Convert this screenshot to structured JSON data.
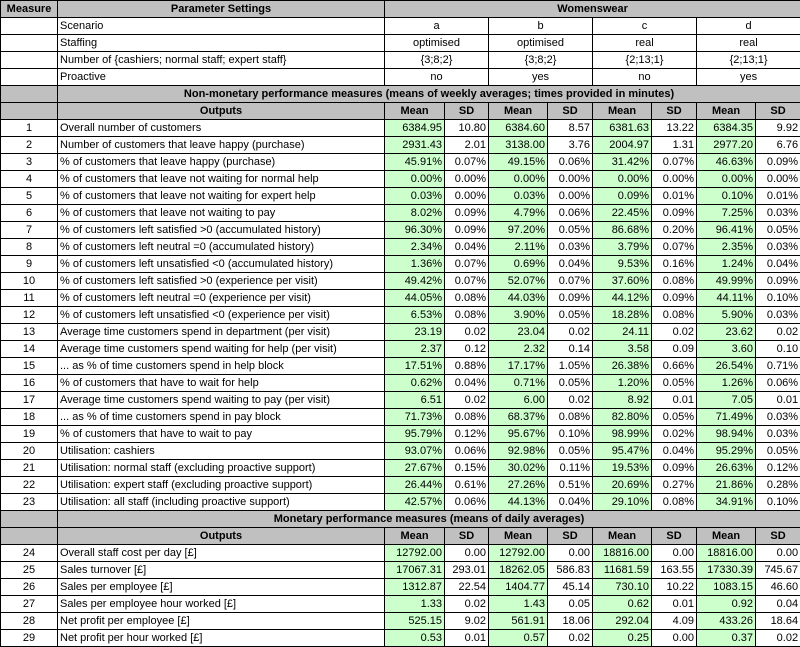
{
  "header": {
    "measure_label": "Measure",
    "params_label": "Parameter Settings",
    "dept_label": "Womenswear"
  },
  "params": [
    {
      "label": "Scenario",
      "values": [
        "a",
        "b",
        "c",
        "d"
      ]
    },
    {
      "label": "Staffing",
      "values": [
        "optimised",
        "optimised",
        "real",
        "real"
      ]
    },
    {
      "label": "Number of {cashiers; normal staff; expert staff}",
      "values": [
        "{3;8;2}",
        "{3;8;2}",
        "{2;13;1}",
        "{2;13;1}"
      ]
    },
    {
      "label": "Proactive",
      "values": [
        "no",
        "yes",
        "no",
        "yes"
      ]
    }
  ],
  "sections": [
    {
      "title": "Non-monetary performance measures (means of weekly averages; times provided in minutes)",
      "outputs_label": "Outputs",
      "col_labels": [
        "Mean",
        "SD",
        "Mean",
        "SD",
        "Mean",
        "SD",
        "Mean",
        "SD"
      ],
      "rows": [
        {
          "id": "1",
          "label": "Overall number of customers",
          "values": [
            "6384.95",
            "10.80",
            "6384.60",
            "8.57",
            "6381.63",
            "13.22",
            "6384.35",
            "9.92"
          ]
        },
        {
          "id": "2",
          "label": "Number of customers that leave happy (purchase)",
          "values": [
            "2931.43",
            "2.01",
            "3138.00",
            "3.76",
            "2004.97",
            "1.31",
            "2977.20",
            "6.76"
          ]
        },
        {
          "id": "3",
          "label": "% of customers that leave happy (purchase)",
          "values": [
            "45.91%",
            "0.07%",
            "49.15%",
            "0.06%",
            "31.42%",
            "0.07%",
            "46.63%",
            "0.09%"
          ]
        },
        {
          "id": "4",
          "label": "% of customers that leave not waiting for normal help",
          "values": [
            "0.00%",
            "0.00%",
            "0.00%",
            "0.00%",
            "0.00%",
            "0.00%",
            "0.00%",
            "0.00%"
          ]
        },
        {
          "id": "5",
          "label": "% of customers that leave not waiting for expert help",
          "values": [
            "0.03%",
            "0.00%",
            "0.03%",
            "0.00%",
            "0.09%",
            "0.01%",
            "0.10%",
            "0.01%"
          ]
        },
        {
          "id": "6",
          "label": "% of customers that leave not waiting to pay",
          "values": [
            "8.02%",
            "0.09%",
            "4.79%",
            "0.06%",
            "22.45%",
            "0.09%",
            "7.25%",
            "0.03%"
          ]
        },
        {
          "id": "7",
          "label": "% of customers left satisfied >0 (accumulated history)",
          "values": [
            "96.30%",
            "0.09%",
            "97.20%",
            "0.05%",
            "86.68%",
            "0.20%",
            "96.41%",
            "0.05%"
          ]
        },
        {
          "id": "8",
          "label": "% of customers left neutral =0 (accumulated history)",
          "values": [
            "2.34%",
            "0.04%",
            "2.11%",
            "0.03%",
            "3.79%",
            "0.07%",
            "2.35%",
            "0.03%"
          ]
        },
        {
          "id": "9",
          "label": "% of customers left unsatisfied <0 (accumulated history)",
          "values": [
            "1.36%",
            "0.07%",
            "0.69%",
            "0.04%",
            "9.53%",
            "0.16%",
            "1.24%",
            "0.04%"
          ]
        },
        {
          "id": "10",
          "label": "% of customers left satisfied >0 (experience per visit)",
          "values": [
            "49.42%",
            "0.07%",
            "52.07%",
            "0.07%",
            "37.60%",
            "0.08%",
            "49.99%",
            "0.09%"
          ]
        },
        {
          "id": "11",
          "label": "% of customers left neutral =0 (experience per visit)",
          "values": [
            "44.05%",
            "0.08%",
            "44.03%",
            "0.09%",
            "44.12%",
            "0.09%",
            "44.11%",
            "0.10%"
          ]
        },
        {
          "id": "12",
          "label": "% of customers left unsatisfied <0 (experience per visit)",
          "values": [
            "6.53%",
            "0.08%",
            "3.90%",
            "0.05%",
            "18.28%",
            "0.08%",
            "5.90%",
            "0.03%"
          ]
        },
        {
          "id": "13",
          "label": "Average time customers spend in department (per visit)",
          "values": [
            "23.19",
            "0.02",
            "23.04",
            "0.02",
            "24.11",
            "0.02",
            "23.62",
            "0.02"
          ]
        },
        {
          "id": "14",
          "label": "Average time customers spend waiting for help (per visit)",
          "values": [
            "2.37",
            "0.12",
            "2.32",
            "0.14",
            "3.58",
            "0.09",
            "3.60",
            "0.10"
          ]
        },
        {
          "id": "15",
          "label": "... as % of time customers spend in help block",
          "values": [
            "17.51%",
            "0.88%",
            "17.17%",
            "1.05%",
            "26.38%",
            "0.66%",
            "26.54%",
            "0.71%"
          ]
        },
        {
          "id": "16",
          "label": "% of customers that have to wait for help",
          "values": [
            "0.62%",
            "0.04%",
            "0.71%",
            "0.05%",
            "1.20%",
            "0.05%",
            "1.26%",
            "0.06%"
          ]
        },
        {
          "id": "17",
          "label": "Average time customers spend waiting to pay (per visit)",
          "values": [
            "6.51",
            "0.02",
            "6.00",
            "0.02",
            "8.92",
            "0.01",
            "7.05",
            "0.01"
          ]
        },
        {
          "id": "18",
          "label": "... as % of time customers spend in pay block",
          "values": [
            "71.73%",
            "0.08%",
            "68.37%",
            "0.08%",
            "82.80%",
            "0.05%",
            "71.49%",
            "0.03%"
          ]
        },
        {
          "id": "19",
          "label": "% of customers that have to wait to pay",
          "values": [
            "95.79%",
            "0.12%",
            "95.67%",
            "0.10%",
            "98.99%",
            "0.02%",
            "98.94%",
            "0.03%"
          ]
        },
        {
          "id": "20",
          "label": "Utilisation: cashiers",
          "values": [
            "93.07%",
            "0.06%",
            "92.98%",
            "0.05%",
            "95.47%",
            "0.04%",
            "95.29%",
            "0.05%"
          ]
        },
        {
          "id": "21",
          "label": "Utilisation: normal staff (excluding proactive support)",
          "values": [
            "27.67%",
            "0.15%",
            "30.02%",
            "0.11%",
            "19.53%",
            "0.09%",
            "26.63%",
            "0.12%"
          ]
        },
        {
          "id": "22",
          "label": "Utilisation: expert staff (excluding proactive support)",
          "values": [
            "26.44%",
            "0.61%",
            "27.26%",
            "0.51%",
            "20.69%",
            "0.27%",
            "21.86%",
            "0.28%"
          ]
        },
        {
          "id": "23",
          "label": "Utilisation: all staff (including proactive support)",
          "values": [
            "42.57%",
            "0.06%",
            "44.13%",
            "0.04%",
            "29.10%",
            "0.08%",
            "34.91%",
            "0.10%"
          ]
        }
      ]
    },
    {
      "title": "Monetary performance measures (means of daily averages)",
      "outputs_label": "Outputs",
      "col_labels": [
        "Mean",
        "SD",
        "Mean",
        "SD",
        "Mean",
        "SD",
        "Mean",
        "SD"
      ],
      "rows": [
        {
          "id": "24",
          "label": "Overall staff cost per day [£]",
          "values": [
            "12792.00",
            "0.00",
            "12792.00",
            "0.00",
            "18816.00",
            "0.00",
            "18816.00",
            "0.00"
          ]
        },
        {
          "id": "25",
          "label": "Sales turnover [£]",
          "values": [
            "17067.31",
            "293.01",
            "18262.05",
            "586.83",
            "11681.59",
            "163.55",
            "17330.39",
            "745.67"
          ]
        },
        {
          "id": "26",
          "label": "Sales per employee [£]",
          "values": [
            "1312.87",
            "22.54",
            "1404.77",
            "45.14",
            "730.10",
            "10.22",
            "1083.15",
            "46.60"
          ]
        },
        {
          "id": "27",
          "label": "Sales per employee hour worked [£]",
          "values": [
            "1.33",
            "0.02",
            "1.43",
            "0.05",
            "0.62",
            "0.01",
            "0.92",
            "0.04"
          ]
        },
        {
          "id": "28",
          "label": "Net profit per employee [£]",
          "values": [
            "525.15",
            "9.02",
            "561.91",
            "18.06",
            "292.04",
            "4.09",
            "433.26",
            "18.64"
          ]
        },
        {
          "id": "29",
          "label": "Net profit per hour worked [£]",
          "values": [
            "0.53",
            "0.01",
            "0.57",
            "0.02",
            "0.25",
            "0.00",
            "0.37",
            "0.02"
          ]
        }
      ]
    }
  ]
}
